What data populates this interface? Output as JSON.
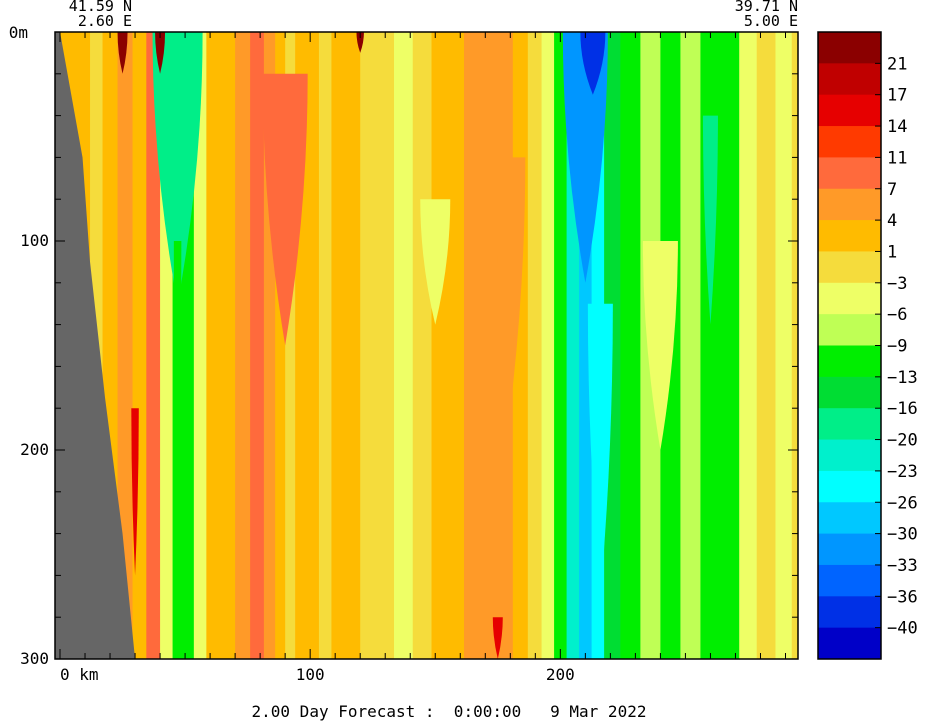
{
  "chart_data": {
    "type": "heatmap",
    "section_start": {
      "lat": "41.59 N",
      "lon": "2.60 E"
    },
    "section_end": {
      "lat": "39.71 N",
      "lon": "5.00 E"
    },
    "y_top_label": "0m",
    "y_ticks": [
      {
        "value": 100,
        "label": "100"
      },
      {
        "value": 200,
        "label": "200"
      },
      {
        "value": 300,
        "label": "300"
      }
    ],
    "ylim": [
      0,
      300
    ],
    "x_ticks": [
      {
        "value": 0,
        "label": "0 km"
      },
      {
        "value": 100,
        "label": "100"
      },
      {
        "value": 200,
        "label": "200"
      }
    ],
    "xlim": [
      -2,
      295
    ],
    "footer": "2.00 Day Forecast :  0:00:00   9 Mar 2022",
    "colorbar": {
      "labels": [
        "21",
        "17",
        "14",
        "11",
        "7",
        "4",
        "1",
        "−3",
        "−6",
        "−9",
        "−13",
        "−16",
        "−20",
        "−23",
        "−26",
        "−30",
        "−33",
        "−36",
        "−40"
      ],
      "colors": [
        "#8b0000",
        "#c00000",
        "#e60000",
        "#ff3a00",
        "#ff6a3c",
        "#ff9a28",
        "#ffbb00",
        "#f5dc3c",
        "#eeff66",
        "#bfff55",
        "#00ee00",
        "#00dd33",
        "#00ee88",
        "#00f0cc",
        "#00ffff",
        "#00c8ff",
        "#0096ff",
        "#0064ff",
        "#0030e6",
        "#0000c8"
      ]
    },
    "bottom_fill_color": "#eeff66",
    "land_color": "#666666",
    "land_boundary": [
      [
        0,
        0
      ],
      [
        9,
        60
      ],
      [
        12,
        110
      ],
      [
        18,
        175
      ],
      [
        25,
        240
      ],
      [
        30,
        300
      ]
    ],
    "columns": [
      {
        "x": -2,
        "v": 1
      },
      {
        "x": 10,
        "v": 2
      },
      {
        "x": 14,
        "v": 0
      },
      {
        "x": 20,
        "v": 1
      },
      {
        "x": 26,
        "v": 5
      },
      {
        "x": 32,
        "v": 3
      },
      {
        "x": 37,
        "v": 7
      },
      {
        "x": 43,
        "v": -6
      },
      {
        "x": 47,
        "v": -10
      },
      {
        "x": 51,
        "v": -12
      },
      {
        "x": 56,
        "v": -4
      },
      {
        "x": 61,
        "v": 1
      },
      {
        "x": 67,
        "v": 3
      },
      {
        "x": 73,
        "v": 6
      },
      {
        "x": 79,
        "v": 8
      },
      {
        "x": 84,
        "v": 5
      },
      {
        "x": 88,
        "v": 1
      },
      {
        "x": 92,
        "v": -2
      },
      {
        "x": 96,
        "v": 1
      },
      {
        "x": 101,
        "v": 3
      },
      {
        "x": 106,
        "v": -2
      },
      {
        "x": 111,
        "v": 1
      },
      {
        "x": 117,
        "v": 2
      },
      {
        "x": 123,
        "v": 0
      },
      {
        "x": 130,
        "v": -2
      },
      {
        "x": 137,
        "v": -4
      },
      {
        "x": 145,
        "v": -1
      },
      {
        "x": 152,
        "v": 1
      },
      {
        "x": 158,
        "v": 3
      },
      {
        "x": 165,
        "v": 4
      },
      {
        "x": 172,
        "v": 5
      },
      {
        "x": 178,
        "v": 4
      },
      {
        "x": 184,
        "v": 2
      },
      {
        "x": 190,
        "v": 0
      },
      {
        "x": 195,
        "v": -4
      },
      {
        "x": 200,
        "v": -10
      },
      {
        "x": 205,
        "v": -22
      },
      {
        "x": 210,
        "v": -27
      },
      {
        "x": 215,
        "v": -24
      },
      {
        "x": 220,
        "v": -14
      },
      {
        "x": 228,
        "v": -10
      },
      {
        "x": 236,
        "v": -8
      },
      {
        "x": 244,
        "v": -11
      },
      {
        "x": 252,
        "v": -9
      },
      {
        "x": 260,
        "v": -12
      },
      {
        "x": 268,
        "v": -10
      },
      {
        "x": 275,
        "v": -5
      },
      {
        "x": 282,
        "v": -3
      },
      {
        "x": 290,
        "v": -4
      },
      {
        "x": 295,
        "v": -3
      }
    ],
    "features": [
      {
        "x": 48,
        "y0": 0,
        "y1": 80,
        "w": 10,
        "v": -42
      },
      {
        "x": 47,
        "y0": 0,
        "y1": 130,
        "w": 20,
        "v": -20
      },
      {
        "x": 47,
        "y0": 100,
        "y1": 250,
        "w": 3,
        "v": -12
      },
      {
        "x": 92,
        "y0": 50,
        "y1": 110,
        "w": 8,
        "v": 15
      },
      {
        "x": 90,
        "y0": 20,
        "y1": 150,
        "w": 18,
        "v": 9
      },
      {
        "x": 150,
        "y0": 80,
        "y1": 140,
        "w": 12,
        "v": -5
      },
      {
        "x": 180,
        "y0": 60,
        "y1": 180,
        "w": 12,
        "v": 6
      },
      {
        "x": 210,
        "y0": 0,
        "y1": 120,
        "w": 18,
        "v": -32
      },
      {
        "x": 213,
        "y0": 0,
        "y1": 30,
        "w": 10,
        "v": -40
      },
      {
        "x": 216,
        "y0": 130,
        "y1": 270,
        "w": 10,
        "v": -25
      },
      {
        "x": 30,
        "y0": 180,
        "y1": 260,
        "w": 3,
        "v": 16
      },
      {
        "x": 25,
        "y0": 0,
        "y1": 20,
        "w": 4,
        "v": 22
      },
      {
        "x": 40,
        "y0": 0,
        "y1": 20,
        "w": 4,
        "v": 22
      },
      {
        "x": 120,
        "y0": 0,
        "y1": 10,
        "w": 3,
        "v": 22
      },
      {
        "x": 175,
        "y0": 280,
        "y1": 300,
        "w": 4,
        "v": 15
      },
      {
        "x": 240,
        "y0": 100,
        "y1": 200,
        "w": 14,
        "v": -6
      },
      {
        "x": 260,
        "y0": 40,
        "y1": 140,
        "w": 6,
        "v": -20
      }
    ]
  }
}
